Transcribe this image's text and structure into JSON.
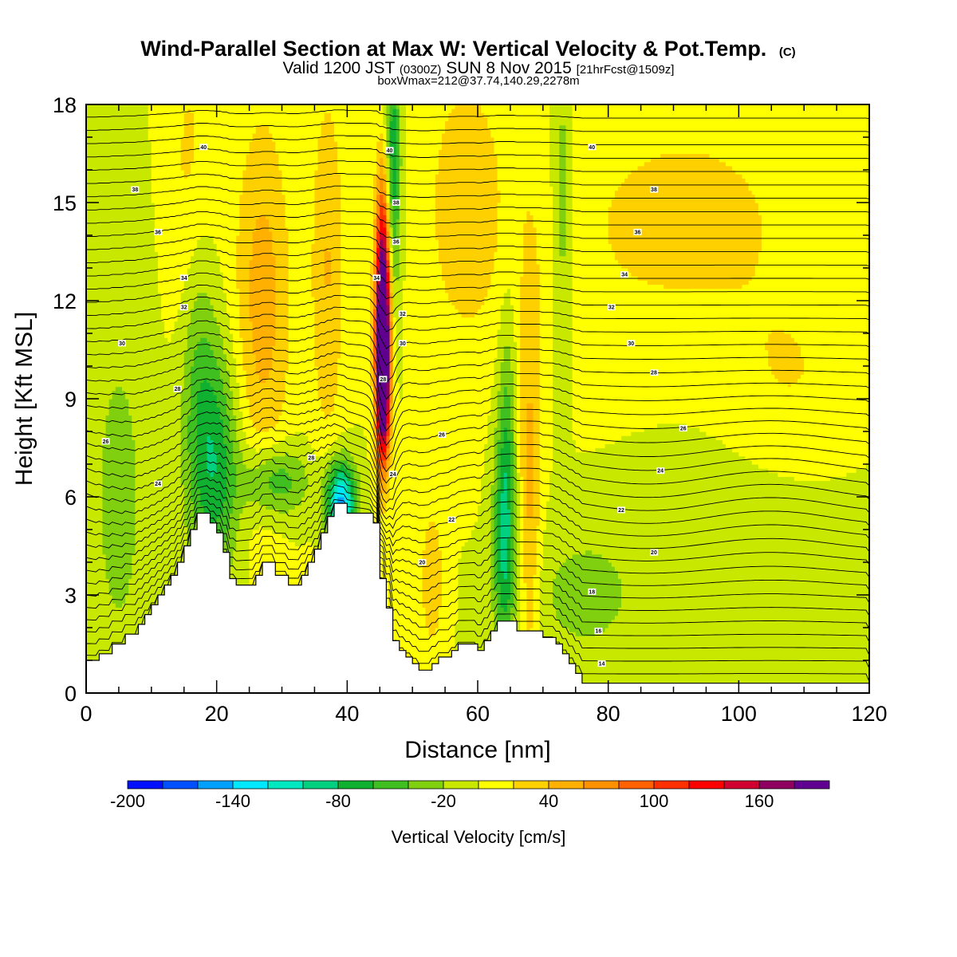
{
  "titles": {
    "main": "Wind-Parallel Section at Max W: Vertical Velocity & Pot.Temp.",
    "main_suffix": "(C)",
    "valid_prefix": "Valid 1200 JST",
    "valid_utc": "(0300Z)",
    "valid_date": "SUN 8 Nov 2015",
    "forecast": "[21hrFcst@1509z]",
    "box_info": "boxWmax=212@37.74,140.29,2278m"
  },
  "chart_data": {
    "type": "heatmap",
    "xlabel": "Distance [nm]",
    "ylabel": "Height [Kft MSL]",
    "xlim": [
      0,
      120
    ],
    "ylim": [
      0,
      18
    ],
    "x_ticks": [
      0,
      20,
      40,
      60,
      80,
      100,
      120
    ],
    "x_tick_labels": [
      "0",
      "20",
      "40",
      "60",
      "80",
      "100",
      "120"
    ],
    "y_ticks": [
      0,
      3,
      6,
      9,
      12,
      15,
      18
    ],
    "y_tick_labels": [
      "0",
      "3",
      "6",
      "9",
      "12",
      "15",
      "18"
    ],
    "colorbar": {
      "label": "Vertical Velocity [cm/s]",
      "range": [
        -200,
        200
      ],
      "step": 20,
      "tick_values": [
        -200,
        -140,
        -80,
        -20,
        40,
        100,
        160
      ],
      "tick_labels": [
        "-200",
        "-140",
        "-80",
        "-20",
        "40",
        "100",
        "160"
      ],
      "colors": [
        "#0010ff",
        "#0050ff",
        "#00a0ff",
        "#00e8ff",
        "#00e8c0",
        "#00d080",
        "#10b030",
        "#40c020",
        "#80d010",
        "#c8e800",
        "#ffff00",
        "#ffd000",
        "#ffb000",
        "#ff9000",
        "#ff6000",
        "#ff3000",
        "#ff0000",
        "#d00030",
        "#900060",
        "#600090"
      ]
    },
    "terrain": [
      [
        0,
        1.0
      ],
      [
        2,
        1.0
      ],
      [
        2,
        1.2
      ],
      [
        4,
        1.2
      ],
      [
        4,
        1.5
      ],
      [
        6,
        1.5
      ],
      [
        6,
        1.8
      ],
      [
        8,
        1.8
      ],
      [
        8,
        2.1
      ],
      [
        9,
        2.1
      ],
      [
        9,
        2.4
      ],
      [
        10,
        2.4
      ],
      [
        10,
        2.7
      ],
      [
        11,
        2.7
      ],
      [
        11,
        3.0
      ],
      [
        12,
        3.0
      ],
      [
        12,
        3.3
      ],
      [
        13,
        3.3
      ],
      [
        13,
        3.6
      ],
      [
        14,
        3.6
      ],
      [
        14,
        4.0
      ],
      [
        15,
        4.0
      ],
      [
        15,
        4.5
      ],
      [
        16,
        4.5
      ],
      [
        16,
        5.0
      ],
      [
        17,
        5.0
      ],
      [
        17,
        5.5
      ],
      [
        19,
        5.5
      ],
      [
        19,
        5.2
      ],
      [
        20,
        5.2
      ],
      [
        20,
        4.9
      ],
      [
        21,
        4.9
      ],
      [
        21,
        4.3
      ],
      [
        22,
        4.3
      ],
      [
        22,
        3.5
      ],
      [
        23,
        3.5
      ],
      [
        23,
        3.3
      ],
      [
        26,
        3.3
      ],
      [
        26,
        3.6
      ],
      [
        27,
        3.6
      ],
      [
        27,
        4.0
      ],
      [
        29,
        4.0
      ],
      [
        29,
        3.6
      ],
      [
        31,
        3.6
      ],
      [
        31,
        3.3
      ],
      [
        33,
        3.3
      ],
      [
        33,
        3.6
      ],
      [
        34,
        3.6
      ],
      [
        34,
        4.0
      ],
      [
        35,
        4.0
      ],
      [
        35,
        4.4
      ],
      [
        36,
        4.4
      ],
      [
        36,
        4.9
      ],
      [
        37,
        4.9
      ],
      [
        37,
        5.4
      ],
      [
        38,
        5.4
      ],
      [
        38,
        5.8
      ],
      [
        40,
        5.8
      ],
      [
        40,
        5.5
      ],
      [
        42,
        5.5
      ],
      [
        42,
        5.5
      ],
      [
        44,
        5.5
      ],
      [
        44,
        5.2
      ],
      [
        45,
        5.2
      ],
      [
        45,
        3.5
      ],
      [
        46,
        3.5
      ],
      [
        46,
        2.6
      ],
      [
        47,
        2.6
      ],
      [
        47,
        1.6
      ],
      [
        48,
        1.6
      ],
      [
        48,
        1.3
      ],
      [
        49,
        1.3
      ],
      [
        49,
        1.1
      ],
      [
        50,
        1.1
      ],
      [
        50,
        0.9
      ],
      [
        51,
        0.9
      ],
      [
        51,
        0.7
      ],
      [
        53,
        0.7
      ],
      [
        53,
        0.9
      ],
      [
        54,
        0.9
      ],
      [
        54,
        1.1
      ],
      [
        56,
        1.1
      ],
      [
        56,
        1.3
      ],
      [
        57,
        1.3
      ],
      [
        57,
        1.5
      ],
      [
        60,
        1.5
      ],
      [
        60,
        1.3
      ],
      [
        61,
        1.3
      ],
      [
        61,
        1.6
      ],
      [
        62,
        1.6
      ],
      [
        62,
        1.9
      ],
      [
        63,
        1.9
      ],
      [
        63,
        2.2
      ],
      [
        64,
        2.2
      ],
      [
        64,
        2.2
      ],
      [
        66,
        2.2
      ],
      [
        66,
        1.9
      ],
      [
        70,
        1.9
      ],
      [
        70,
        1.7
      ],
      [
        72,
        1.7
      ],
      [
        72,
        1.5
      ],
      [
        73,
        1.5
      ],
      [
        73,
        1.2
      ],
      [
        74,
        1.2
      ],
      [
        74,
        0.9
      ],
      [
        75,
        0.9
      ],
      [
        75,
        0.6
      ],
      [
        76,
        0.6
      ],
      [
        76,
        0.3
      ],
      [
        80,
        0.3
      ],
      [
        80,
        0.3
      ],
      [
        120,
        0.3
      ],
      [
        120,
        0
      ]
    ],
    "features": [
      {
        "x": 45.5,
        "y": 12.0,
        "sigma_x": 0.8,
        "sigma_y": 2.5,
        "w": 212
      },
      {
        "x": 45.5,
        "y": 9.5,
        "sigma_x": 0.7,
        "sigma_y": 1.8,
        "w": 180
      },
      {
        "x": 39.0,
        "y": 5.8,
        "sigma_x": 1.6,
        "sigma_y": 0.9,
        "w": -150
      },
      {
        "x": 20.0,
        "y": 7.0,
        "sigma_x": 2.5,
        "sigma_y": 2.5,
        "w": -70
      },
      {
        "x": 17.0,
        "y": 10.0,
        "sigma_x": 2.0,
        "sigma_y": 3.5,
        "w": -45
      },
      {
        "x": 29.0,
        "y": 6.5,
        "sigma_x": 3.5,
        "sigma_y": 0.8,
        "w": -60
      },
      {
        "x": 47.0,
        "y": 16.0,
        "sigma_x": 0.8,
        "sigma_y": 3.0,
        "w": -80
      },
      {
        "x": 64.0,
        "y": 4.5,
        "sigma_x": 1.2,
        "sigma_y": 2.5,
        "w": -70
      },
      {
        "x": 64.5,
        "y": 8.0,
        "sigma_x": 1.0,
        "sigma_y": 3.0,
        "w": -40
      },
      {
        "x": 27.0,
        "y": 12.0,
        "sigma_x": 3.0,
        "sigma_y": 4.0,
        "w": 50
      },
      {
        "x": 37.0,
        "y": 13.0,
        "sigma_x": 1.8,
        "sigma_y": 4.0,
        "w": 40
      },
      {
        "x": 68.0,
        "y": 6.0,
        "sigma_x": 1.2,
        "sigma_y": 4.5,
        "w": 45
      },
      {
        "x": 53.0,
        "y": 3.5,
        "sigma_x": 1.2,
        "sigma_y": 1.5,
        "w": 40
      },
      {
        "x": 16.0,
        "y": 15.0,
        "sigma_x": 2.5,
        "sigma_y": 4.0,
        "w": 30
      },
      {
        "x": 58.0,
        "y": 15.0,
        "sigma_x": 4.0,
        "sigma_y": 3.0,
        "w": 30
      },
      {
        "x": 5.0,
        "y": 6.0,
        "sigma_x": 4.0,
        "sigma_y": 5.0,
        "w": -25
      },
      {
        "x": 100.0,
        "y": 6.0,
        "sigma_x": 15.0,
        "sigma_y": 4.0,
        "w": -15
      },
      {
        "x": 108.0,
        "y": 9.0,
        "sigma_x": 8.0,
        "sigma_y": 2.0,
        "w": 20
      },
      {
        "x": 76.0,
        "y": 3.0,
        "sigma_x": 6.0,
        "sigma_y": 1.5,
        "w": -25
      },
      {
        "x": 73.0,
        "y": 15.0,
        "sigma_x": 1.2,
        "sigma_y": 3.5,
        "w": -40
      },
      {
        "x": 92.0,
        "y": 14.0,
        "sigma_x": 20.0,
        "sigma_y": 4.0,
        "w": 25
      }
    ],
    "contour_labels": [
      {
        "x": 18,
        "y": 16.7,
        "text": "40"
      },
      {
        "x": 7.5,
        "y": 15.4,
        "text": "38"
      },
      {
        "x": 11,
        "y": 14.1,
        "text": "36"
      },
      {
        "x": 15,
        "y": 12.7,
        "text": "34"
      },
      {
        "x": 15,
        "y": 11.8,
        "text": "32"
      },
      {
        "x": 5.5,
        "y": 10.7,
        "text": "30"
      },
      {
        "x": 14,
        "y": 9.3,
        "text": "28"
      },
      {
        "x": 3,
        "y": 7.7,
        "text": "26"
      },
      {
        "x": 11,
        "y": 6.4,
        "text": "24"
      },
      {
        "x": 34.5,
        "y": 7.2,
        "text": "28"
      },
      {
        "x": 46.5,
        "y": 16.6,
        "text": "40"
      },
      {
        "x": 47.5,
        "y": 15.0,
        "text": "38"
      },
      {
        "x": 47.5,
        "y": 13.8,
        "text": "36"
      },
      {
        "x": 44.5,
        "y": 12.7,
        "text": "34"
      },
      {
        "x": 48.5,
        "y": 11.6,
        "text": "32"
      },
      {
        "x": 48.5,
        "y": 10.7,
        "text": "30"
      },
      {
        "x": 45.5,
        "y": 9.6,
        "text": "28"
      },
      {
        "x": 54.5,
        "y": 7.9,
        "text": "26"
      },
      {
        "x": 47,
        "y": 6.7,
        "text": "24"
      },
      {
        "x": 56,
        "y": 5.3,
        "text": "22"
      },
      {
        "x": 51.5,
        "y": 4.0,
        "text": "20"
      },
      {
        "x": 77.5,
        "y": 16.7,
        "text": "40"
      },
      {
        "x": 87,
        "y": 15.4,
        "text": "38"
      },
      {
        "x": 84.5,
        "y": 14.1,
        "text": "36"
      },
      {
        "x": 82.5,
        "y": 12.8,
        "text": "34"
      },
      {
        "x": 80.5,
        "y": 11.8,
        "text": "32"
      },
      {
        "x": 83.5,
        "y": 10.7,
        "text": "30"
      },
      {
        "x": 87,
        "y": 9.8,
        "text": "28"
      },
      {
        "x": 91.5,
        "y": 8.1,
        "text": "26"
      },
      {
        "x": 88,
        "y": 6.8,
        "text": "24"
      },
      {
        "x": 82,
        "y": 5.6,
        "text": "22"
      },
      {
        "x": 87,
        "y": 4.3,
        "text": "20"
      },
      {
        "x": 77.5,
        "y": 3.1,
        "text": "18"
      },
      {
        "x": 78.5,
        "y": 1.9,
        "text": "16"
      },
      {
        "x": 79,
        "y": 0.9,
        "text": "14"
      }
    ]
  }
}
